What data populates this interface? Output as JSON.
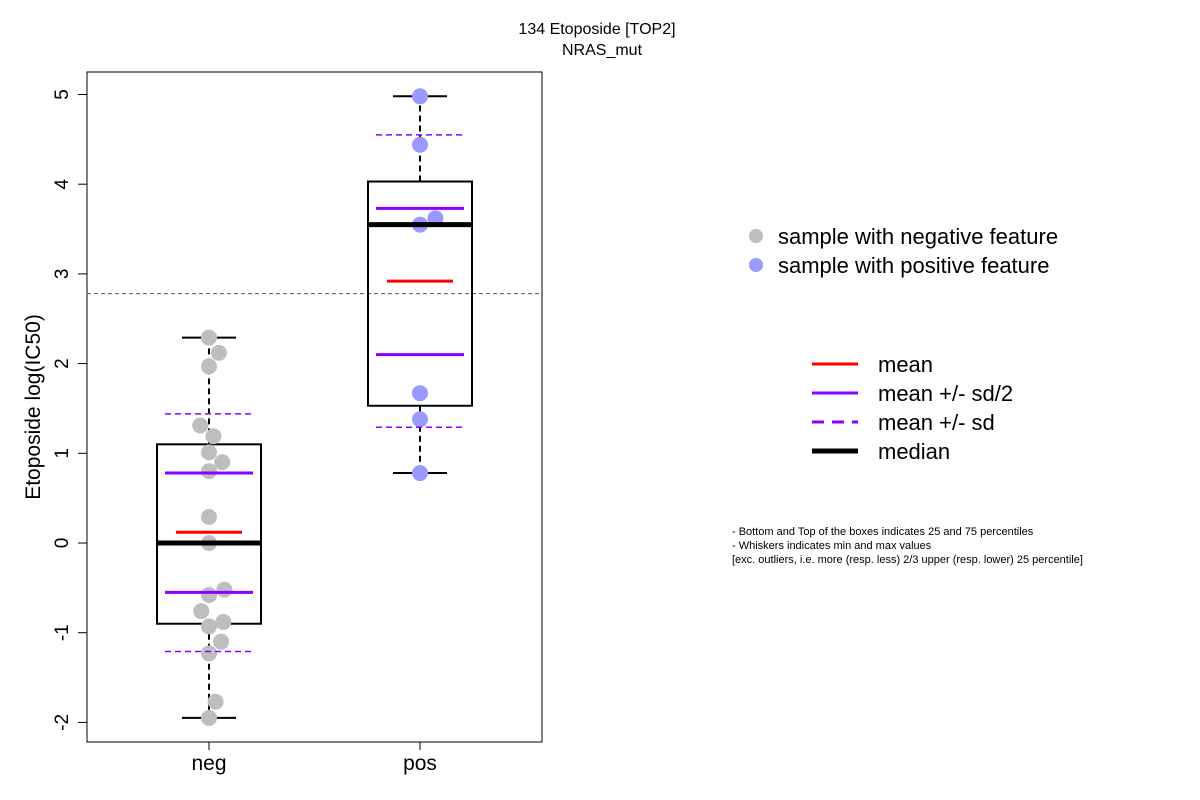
{
  "chart_data": {
    "type": "boxplot",
    "title": "134 Etoposide [TOP2]",
    "subtitle": "NRAS_mut",
    "ylabel": "Etoposide log(IC50)",
    "ylim": [
      -2.2,
      5.25
    ],
    "yticks": [
      -2,
      -1,
      0,
      1,
      2,
      3,
      4,
      5
    ],
    "categories": [
      "neg",
      "pos"
    ],
    "threshold": 2.78,
    "groups": [
      {
        "name": "neg",
        "color": "#bebebe",
        "whisker_min": -1.95,
        "q1": -0.9,
        "median": 0.0,
        "q3": 1.1,
        "whisker_max": 2.29,
        "mean": 0.12,
        "mean_minus_half_sd": -0.55,
        "mean_plus_half_sd": 0.78,
        "mean_minus_sd": -1.21,
        "mean_plus_sd": 1.44,
        "points": [
          {
            "x": 0.0,
            "y": 2.29
          },
          {
            "x": 0.09,
            "y": 2.12
          },
          {
            "x": 0.0,
            "y": 1.97
          },
          {
            "x": -0.08,
            "y": 1.31
          },
          {
            "x": 0.04,
            "y": 1.19
          },
          {
            "x": 0.0,
            "y": 1.01
          },
          {
            "x": 0.12,
            "y": 0.9
          },
          {
            "x": 0.0,
            "y": 0.8
          },
          {
            "x": 0.0,
            "y": 0.29
          },
          {
            "x": 0.0,
            "y": 0.0
          },
          {
            "x": 0.14,
            "y": -0.52
          },
          {
            "x": 0.0,
            "y": -0.58
          },
          {
            "x": -0.07,
            "y": -0.76
          },
          {
            "x": 0.13,
            "y": -0.88
          },
          {
            "x": 0.0,
            "y": -0.93
          },
          {
            "x": 0.11,
            "y": -1.1
          },
          {
            "x": 0.0,
            "y": -1.23
          },
          {
            "x": 0.06,
            "y": -1.77
          },
          {
            "x": 0.0,
            "y": -1.95
          }
        ]
      },
      {
        "name": "pos",
        "color": "#9999ff",
        "whisker_min": 0.78,
        "q1": 1.53,
        "median": 3.55,
        "q3": 4.03,
        "whisker_max": 4.98,
        "mean": 2.92,
        "mean_minus_half_sd": 2.1,
        "mean_plus_half_sd": 3.73,
        "mean_minus_sd": 1.29,
        "mean_plus_sd": 4.55,
        "points": [
          {
            "x": 0.0,
            "y": 4.98
          },
          {
            "x": 0.0,
            "y": 4.44
          },
          {
            "x": 0.14,
            "y": 3.62
          },
          {
            "x": 0.0,
            "y": 3.55
          },
          {
            "x": 0.0,
            "y": 1.67
          },
          {
            "x": 0.0,
            "y": 1.38
          },
          {
            "x": 0.0,
            "y": 0.78
          }
        ]
      }
    ],
    "legend_samples": [
      {
        "label": "sample with negative feature",
        "color": "#bebebe"
      },
      {
        "label": "sample with positive feature",
        "color": "#9999ff"
      }
    ],
    "legend_lines": [
      {
        "label": "mean",
        "color": "#ff0000",
        "style": "solid"
      },
      {
        "label": "mean +/- sd/2",
        "color": "#8b00ff",
        "style": "solid"
      },
      {
        "label": "mean +/- sd",
        "color": "#8b00ff",
        "style": "dashed"
      },
      {
        "label": "median",
        "color": "#000000",
        "style": "thick"
      }
    ],
    "colors": {
      "mean": "#ff0000",
      "sd": "#8b00ff",
      "median": "#000000",
      "threshold": "#555555"
    }
  },
  "notes": [
    "- Bottom and Top of the boxes indicates 25 and 75 percentiles",
    "- Whiskers indicates min and max values",
    "[exc. outliers, i.e. more (resp. less) 2/3 upper (resp. lower) 25 percentile]"
  ]
}
